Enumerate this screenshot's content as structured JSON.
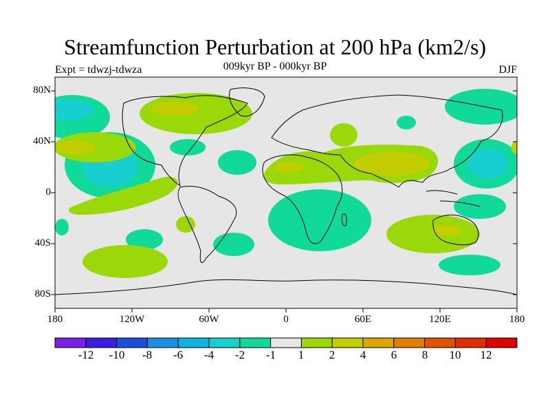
{
  "title": "Streamfunction Perturbation at 200 hPa (km2/s)",
  "subtitle_left": "Expt = tdwzj-tdwza",
  "subtitle_center": "009kyr BP - 000kyr BP",
  "subtitle_right": "DJF",
  "chart_data": {
    "type": "heatmap",
    "map_projection": "cylindrical equidistant",
    "variable": "Streamfunction Perturbation at 200 hPa",
    "units": "km2/s",
    "season": "DJF",
    "lat_tick_labels": [
      "80N",
      "40N",
      "0",
      "40S",
      "80S"
    ],
    "lon_tick_labels": [
      "180",
      "120W",
      "60W",
      "0",
      "60E",
      "120E",
      "180"
    ],
    "colorbar": {
      "levels": [
        "-12",
        "-10",
        "-8",
        "-6",
        "-4",
        "-2",
        "-1",
        "1",
        "2",
        "4",
        "6",
        "8",
        "10",
        "12"
      ],
      "colors": [
        "#7b1fe6",
        "#3a1ce0",
        "#1a4fdc",
        "#1e8fe0",
        "#10b3de",
        "#18cfd0",
        "#10d99a",
        "#e6e6e6",
        "#9ad80a",
        "#c4cd00",
        "#dca800",
        "#e07e00",
        "#e05200",
        "#e02e00",
        "#e00000"
      ]
    }
  }
}
